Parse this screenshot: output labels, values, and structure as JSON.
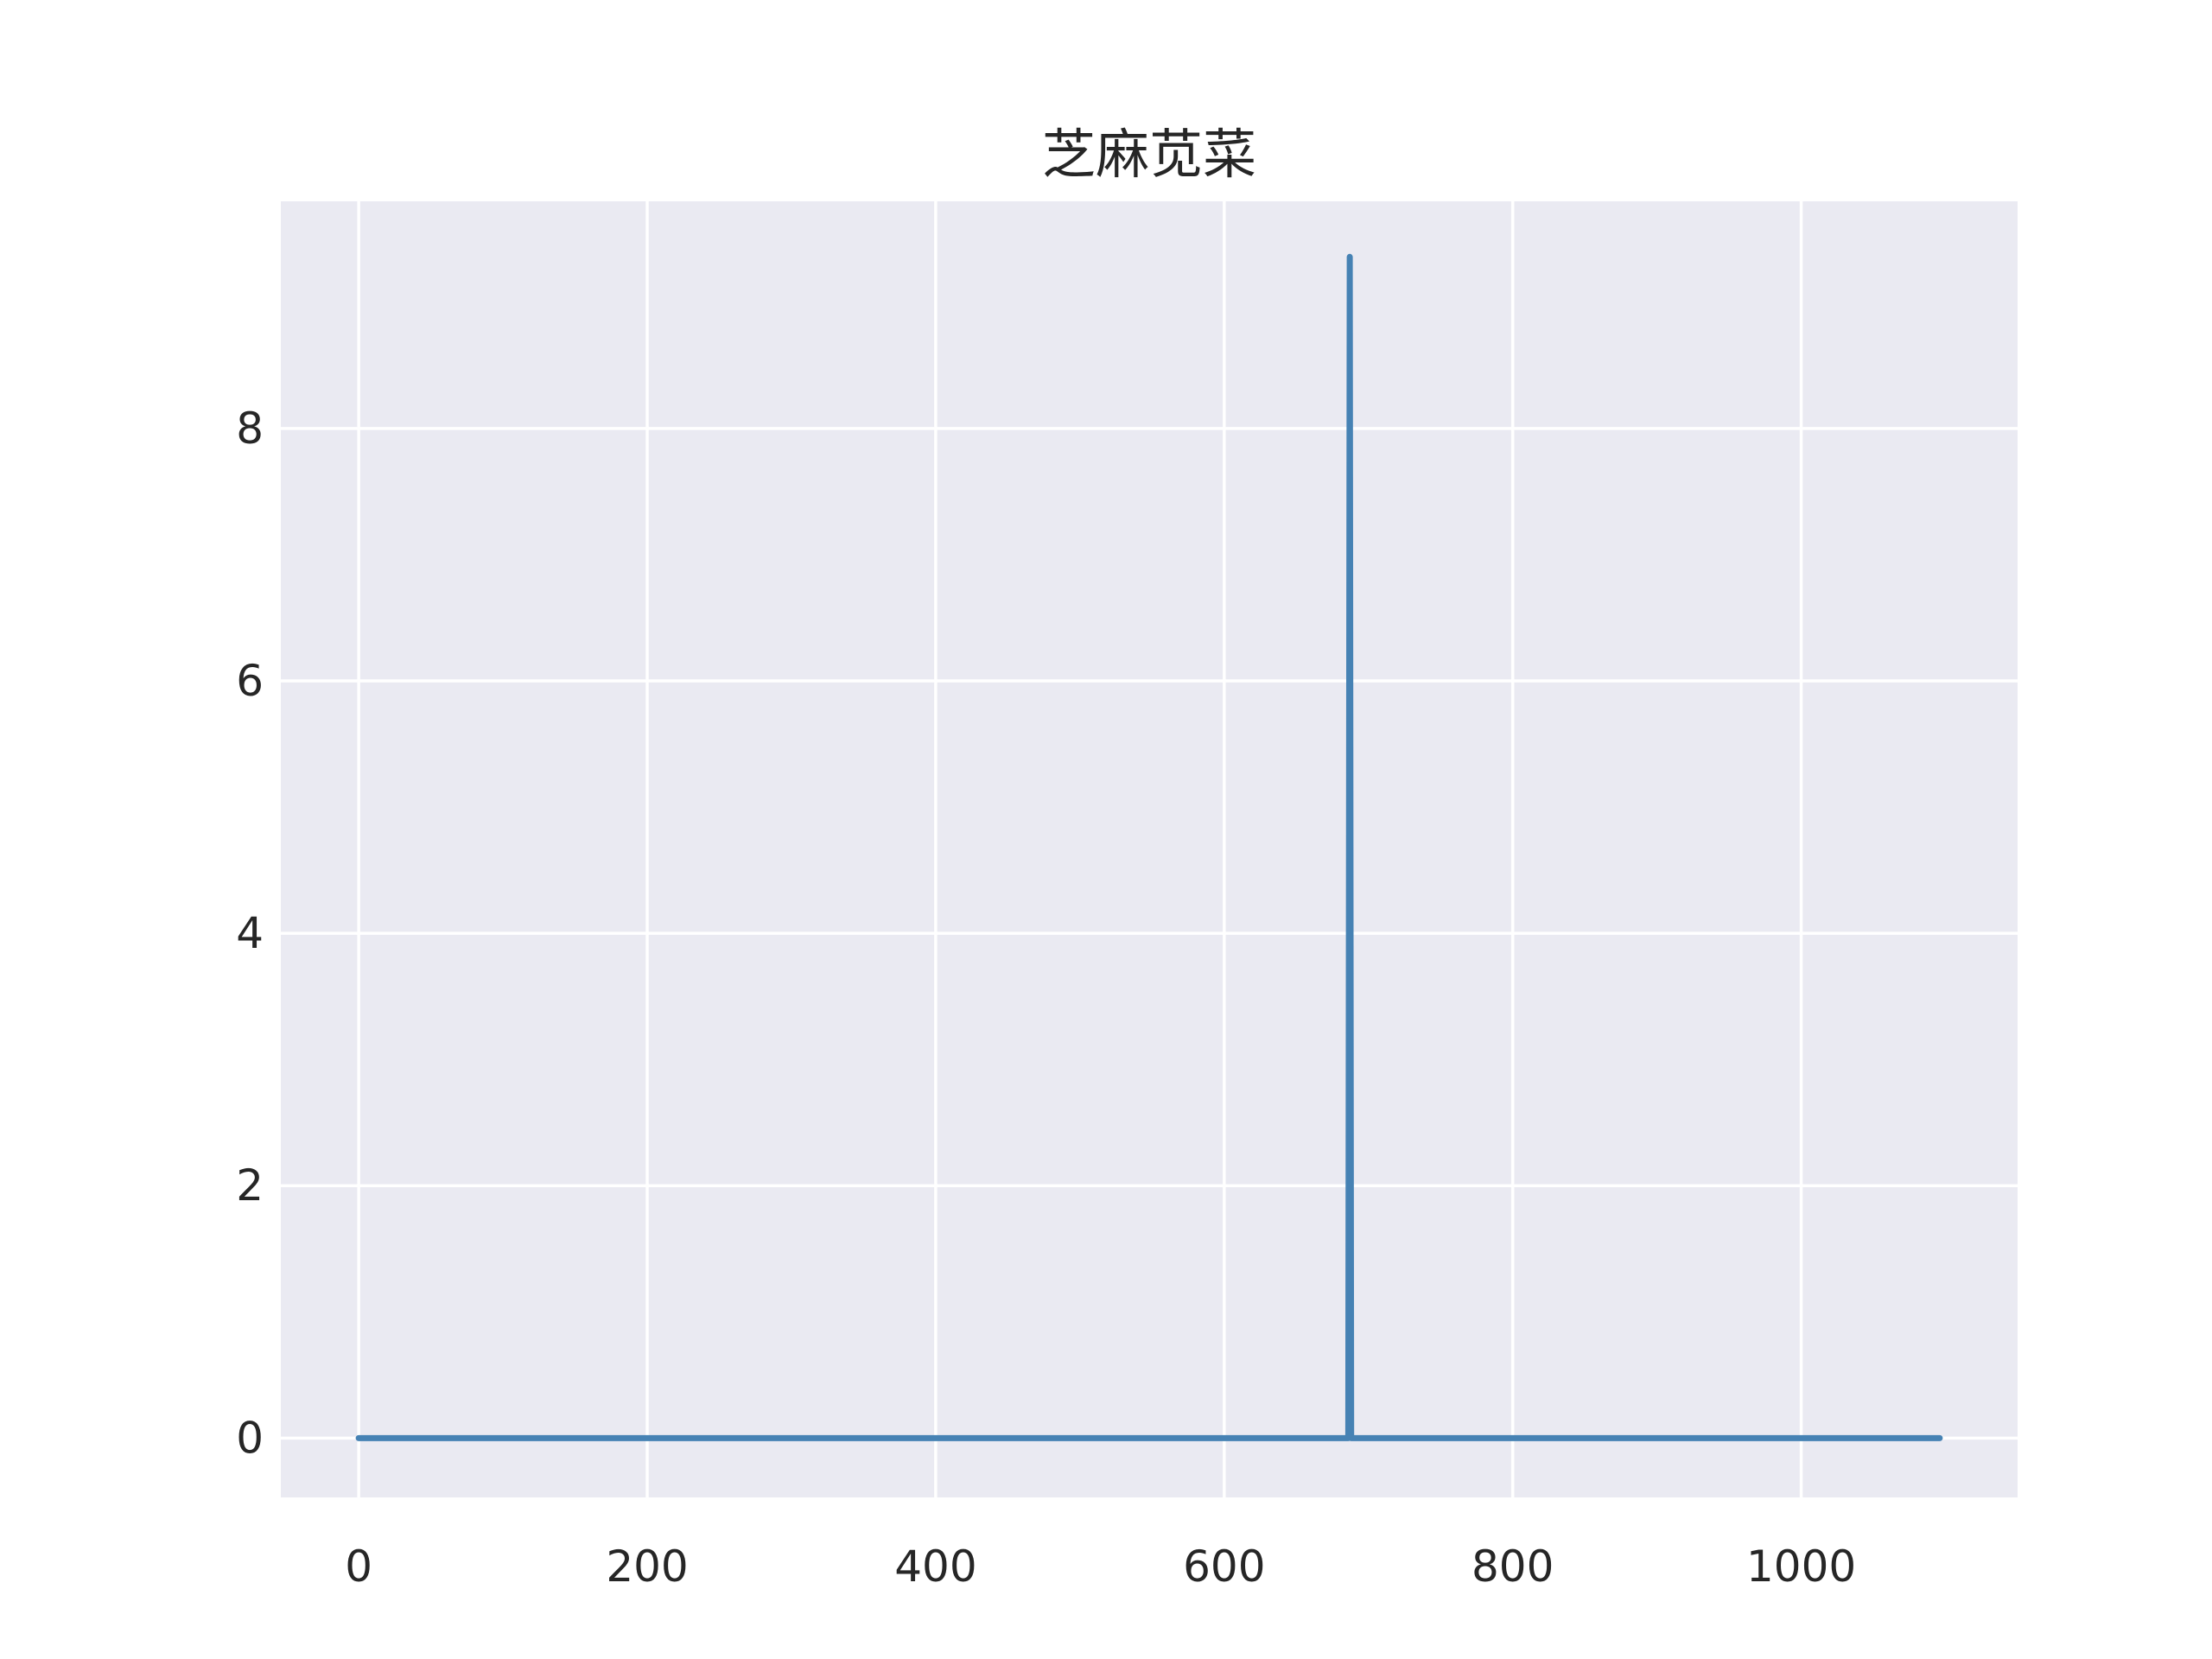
{
  "chart_data": {
    "type": "line",
    "title": "芝麻苋菜",
    "xlabel": "",
    "ylabel": "",
    "xlim": [
      -54,
      1150
    ],
    "ylim": [
      -0.47,
      9.8
    ],
    "xticks": [
      0,
      200,
      400,
      600,
      800,
      1000
    ],
    "yticks": [
      0,
      2,
      4,
      6,
      8
    ],
    "xtick_labels": [
      "0",
      "200",
      "400",
      "600",
      "800",
      "1000"
    ],
    "ytick_labels": [
      "0",
      "2",
      "4",
      "6",
      "8"
    ],
    "grid": true,
    "background": "#eaeaf2",
    "grid_color": "#ffffff",
    "series": [
      {
        "color": "#4682b4",
        "x": [
          0,
          686,
          687,
          688,
          1096
        ],
        "y": [
          0,
          0,
          9.36,
          0,
          0
        ]
      }
    ]
  }
}
